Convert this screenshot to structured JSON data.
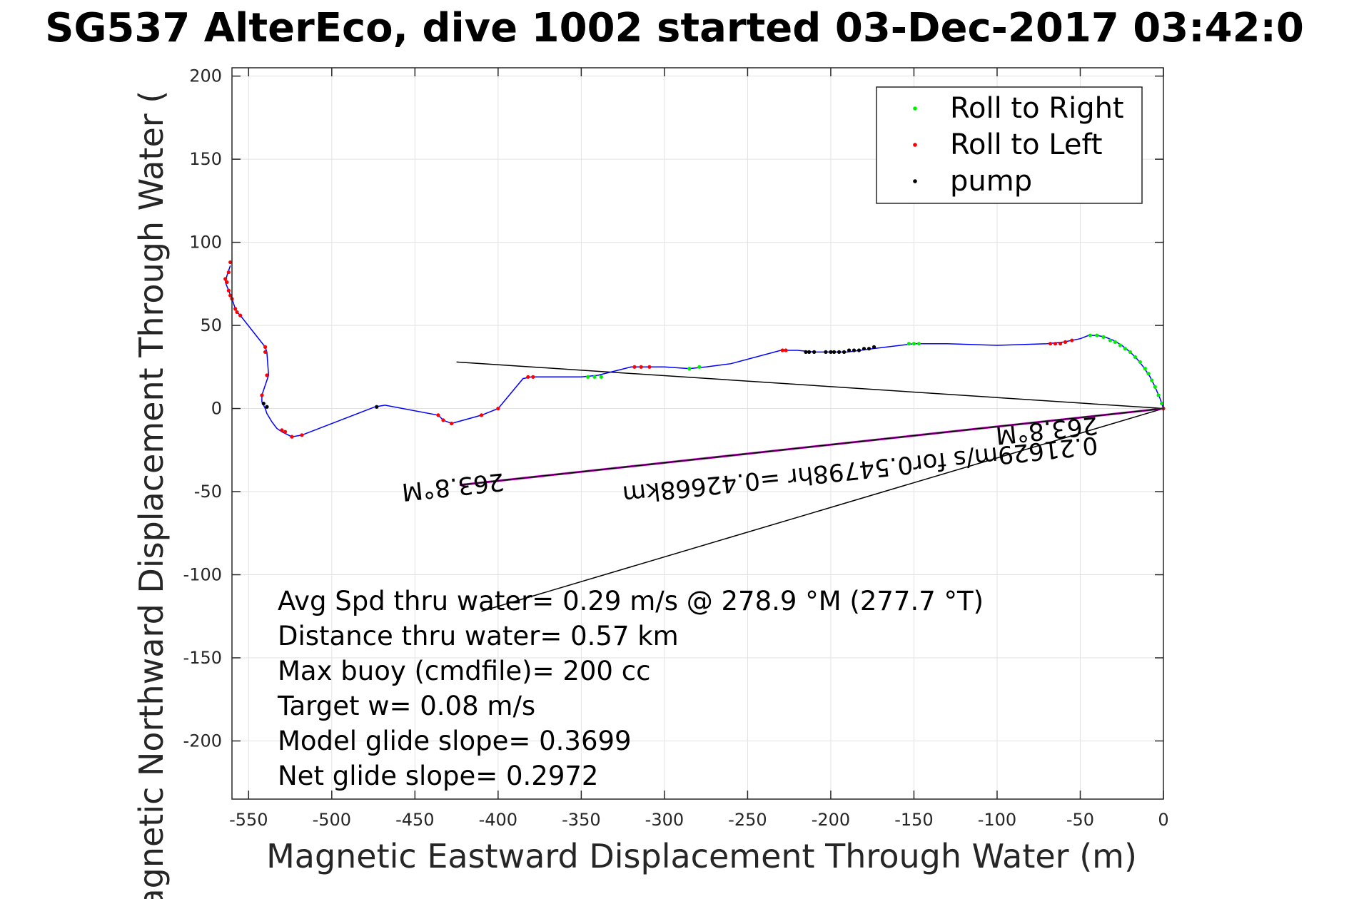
{
  "chart_data": {
    "type": "scatter",
    "title": "SG537 AlterEco, dive 1002 started 03-Dec-2017 03:42:0",
    "xlabel": "Magnetic Eastward Displacement Through Water (m)",
    "ylabel": "Magnetic Northward Displacement Through Water (",
    "xlim": [
      -560,
      0
    ],
    "ylim": [
      -235,
      205
    ],
    "x_ticks": [
      -550,
      -500,
      -450,
      -400,
      -350,
      -300,
      -250,
      -200,
      -150,
      -100,
      -50,
      0
    ],
    "y_ticks": [
      200,
      150,
      100,
      50,
      0,
      -50,
      -100,
      -150,
      -200
    ],
    "grid": true,
    "legend_position": "top-right",
    "legend": [
      {
        "label": "Roll to Right",
        "color": "#00ee00"
      },
      {
        "label": "Roll to Left",
        "color": "#ff0000"
      },
      {
        "label": "pump",
        "color": "#000000"
      }
    ],
    "track": {
      "color": "#0000ff",
      "points": [
        [
          0,
          0
        ],
        [
          -2,
          6
        ],
        [
          -5,
          13
        ],
        [
          -8,
          19
        ],
        [
          -12,
          25
        ],
        [
          -16,
          30
        ],
        [
          -20,
          34
        ],
        [
          -25,
          38
        ],
        [
          -30,
          41
        ],
        [
          -35,
          43
        ],
        [
          -40,
          44
        ],
        [
          -45,
          44
        ],
        [
          -50,
          42
        ],
        [
          -60,
          40
        ],
        [
          -70,
          39
        ],
        [
          -100,
          38
        ],
        [
          -130,
          39
        ],
        [
          -150,
          39
        ],
        [
          -175,
          36
        ],
        [
          -190,
          34
        ],
        [
          -200,
          34
        ],
        [
          -210,
          34
        ],
        [
          -220,
          35
        ],
        [
          -230,
          35
        ],
        [
          -260,
          27
        ],
        [
          -275,
          25
        ],
        [
          -285,
          24
        ],
        [
          -300,
          25
        ],
        [
          -310,
          25
        ],
        [
          -320,
          25
        ],
        [
          -340,
          20
        ],
        [
          -350,
          19
        ],
        [
          -370,
          19
        ],
        [
          -380,
          19
        ],
        [
          -385,
          18
        ],
        [
          -400,
          0
        ],
        [
          -410,
          -4
        ],
        [
          -428,
          -9
        ],
        [
          -433,
          -7
        ],
        [
          -436,
          -4
        ],
        [
          -468,
          2
        ],
        [
          -474,
          1
        ],
        [
          -518,
          -16
        ],
        [
          -524,
          -17
        ],
        [
          -530,
          -14
        ],
        [
          -533,
          -12
        ],
        [
          -536,
          -8
        ],
        [
          -539,
          -3
        ],
        [
          -540,
          0
        ],
        [
          -542,
          4
        ],
        [
          -542,
          8
        ],
        [
          -538,
          20
        ],
        [
          -539,
          34
        ],
        [
          -540,
          37
        ],
        [
          -555,
          56
        ],
        [
          -557,
          58
        ],
        [
          -558,
          60
        ],
        [
          -560,
          66
        ],
        [
          -562,
          71
        ],
        [
          -564,
          76
        ],
        [
          -563,
          80
        ],
        [
          -561,
          86
        ]
      ]
    },
    "series": [
      {
        "name": "Roll to Right",
        "color": "#00ee00",
        "points": [
          [
            -1,
            3
          ],
          [
            -3,
            8
          ],
          [
            -5,
            13
          ],
          [
            -7,
            17
          ],
          [
            -9,
            21
          ],
          [
            -11,
            24
          ],
          [
            -14,
            28
          ],
          [
            -17,
            31
          ],
          [
            -20,
            34
          ],
          [
            -23,
            36
          ],
          [
            -26,
            38
          ],
          [
            -29,
            40
          ],
          [
            -32,
            41
          ],
          [
            -36,
            43
          ],
          [
            -40,
            44
          ],
          [
            -44,
            44
          ],
          [
            -147,
            39
          ],
          [
            -150,
            39
          ],
          [
            -153,
            39
          ],
          [
            -279,
            25
          ],
          [
            -285,
            24
          ],
          [
            -338,
            19
          ],
          [
            -342,
            19
          ],
          [
            -346,
            19
          ]
        ]
      },
      {
        "name": "Roll to Left",
        "color": "#ff0000",
        "points": [
          [
            0,
            0
          ],
          [
            -55,
            41
          ],
          [
            -59,
            40
          ],
          [
            -62,
            39
          ],
          [
            -65,
            39
          ],
          [
            -68,
            39
          ],
          [
            -227,
            35
          ],
          [
            -229,
            35
          ],
          [
            -309,
            25
          ],
          [
            -314,
            25
          ],
          [
            -318,
            25
          ],
          [
            -379,
            19
          ],
          [
            -382,
            19
          ],
          [
            -400,
            0
          ],
          [
            -410,
            -4
          ],
          [
            -428,
            -9
          ],
          [
            -433,
            -7
          ],
          [
            -436,
            -4
          ],
          [
            -518,
            -16
          ],
          [
            -524,
            -17
          ],
          [
            -528,
            -14
          ],
          [
            -530,
            -13
          ],
          [
            -542,
            8
          ],
          [
            -539,
            20
          ],
          [
            -540,
            34
          ],
          [
            -540,
            37
          ],
          [
            -555,
            56
          ],
          [
            -557,
            58
          ],
          [
            -558,
            60
          ],
          [
            -560,
            66
          ],
          [
            -561,
            68
          ],
          [
            -562,
            71
          ],
          [
            -563,
            76
          ],
          [
            -564,
            78
          ],
          [
            -562,
            82
          ],
          [
            -561,
            88
          ]
        ]
      },
      {
        "name": "pump",
        "color": "#000000",
        "points": [
          [
            -174,
            37
          ],
          [
            -177,
            36
          ],
          [
            -180,
            36
          ],
          [
            -183,
            35
          ],
          [
            -186,
            35
          ],
          [
            -189,
            35
          ],
          [
            -192,
            34
          ],
          [
            -195,
            34
          ],
          [
            -198,
            34
          ],
          [
            -200,
            34
          ],
          [
            -203,
            34
          ],
          [
            -210,
            34
          ],
          [
            -213,
            34
          ],
          [
            -215,
            34
          ],
          [
            -473,
            1
          ],
          [
            -539,
            1
          ],
          [
            -541,
            3
          ]
        ]
      }
    ],
    "lines": [
      {
        "color": "#000000",
        "from": [
          0,
          0
        ],
        "to": [
          -425,
          28
        ]
      },
      {
        "color": "#000000",
        "from": [
          0,
          0
        ],
        "to": [
          -410,
          -122
        ]
      },
      {
        "color": "#cc00cc",
        "from": [
          0,
          0
        ],
        "to": [
          -423,
          -46
        ]
      },
      {
        "color": "#000000",
        "from": [
          0,
          0
        ],
        "to": [
          -423,
          -46
        ]
      }
    ],
    "annotations": [
      {
        "text": "263.8°M",
        "at": [
          -40,
          -5
        ]
      },
      {
        "text": "0.21629m/s for0.54798hr =0.42668km",
        "at": [
          -40,
          -17
        ]
      },
      {
        "text": "263.8°M",
        "at": [
          -397,
          -39
        ]
      }
    ],
    "stats": [
      "Avg Spd thru water=  0.29 m/s @ 278.9 °M (277.7 °T)",
      "Distance thru water=  0.57 km",
      "Max buoy (cmdfile)= 200 cc",
      "Target w= 0.08 m/s",
      "Model glide slope= 0.3699",
      "Net glide slope= 0.2972"
    ]
  }
}
